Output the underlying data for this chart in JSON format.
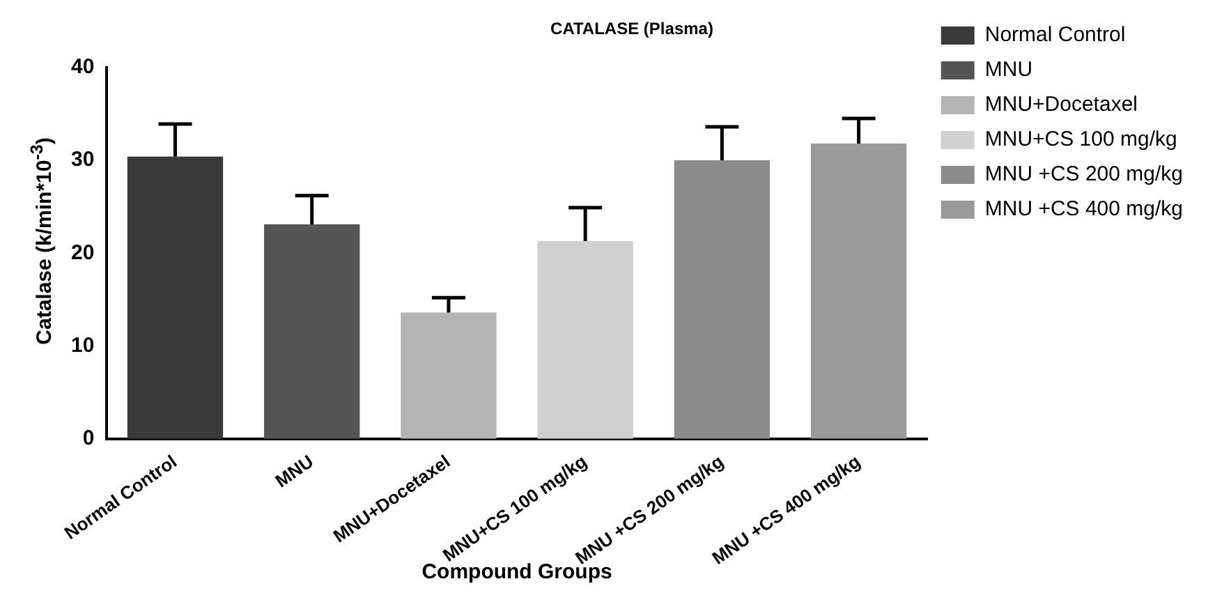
{
  "chart_data": {
    "type": "bar",
    "title": "CATALASE (Plasma)",
    "xlabel": "Compound Groups",
    "ylabel": "Catalase (k/min*10$^{-3}$)",
    "categories": [
      "Normal Control",
      "MNU",
      "MNU+Docetaxel",
      "MNU+CS 100 mg/kg",
      "MNU +CS 200 mg/kg",
      "MNU +CS 400 mg/kg"
    ],
    "series": [
      {
        "name": "Normal Control",
        "color": "#3a3a3a",
        "values": [
          30.4,
          null,
          null,
          null,
          null,
          null
        ],
        "errors": [
          3.5,
          null,
          null,
          null,
          null,
          null
        ]
      },
      {
        "name": "MNU",
        "color": "#555555",
        "values": [
          null,
          23.1,
          null,
          null,
          null,
          null
        ],
        "errors": [
          null,
          3.1,
          null,
          null,
          null,
          null
        ]
      },
      {
        "name": "MNU+Docetaxel",
        "color": "#b4b4b4",
        "values": [
          null,
          null,
          13.6,
          null,
          null,
          null
        ],
        "errors": [
          null,
          null,
          1.6,
          null,
          null,
          null
        ]
      },
      {
        "name": "MNU+CS 100 mg/kg",
        "color": "#d0d0d0",
        "values": [
          null,
          null,
          null,
          21.3,
          null,
          null
        ],
        "errors": [
          null,
          null,
          null,
          3.6,
          null,
          null
        ]
      },
      {
        "name": "MNU +CS 200 mg/kg",
        "color": "#8c8c8c",
        "values": [
          null,
          null,
          null,
          null,
          30.0,
          null
        ],
        "errors": [
          null,
          null,
          null,
          null,
          3.6,
          null
        ]
      },
      {
        "name": "MNU +CS 400 mg/kg",
        "color": "#9a9a9a",
        "values": [
          null,
          null,
          null,
          null,
          null,
          31.8
        ],
        "errors": [
          null,
          null,
          null,
          null,
          null,
          2.7
        ]
      }
    ],
    "ylim": [
      0,
      40
    ],
    "yticks": [
      0,
      10,
      20,
      30,
      40
    ],
    "grid": false,
    "legend": "right"
  }
}
